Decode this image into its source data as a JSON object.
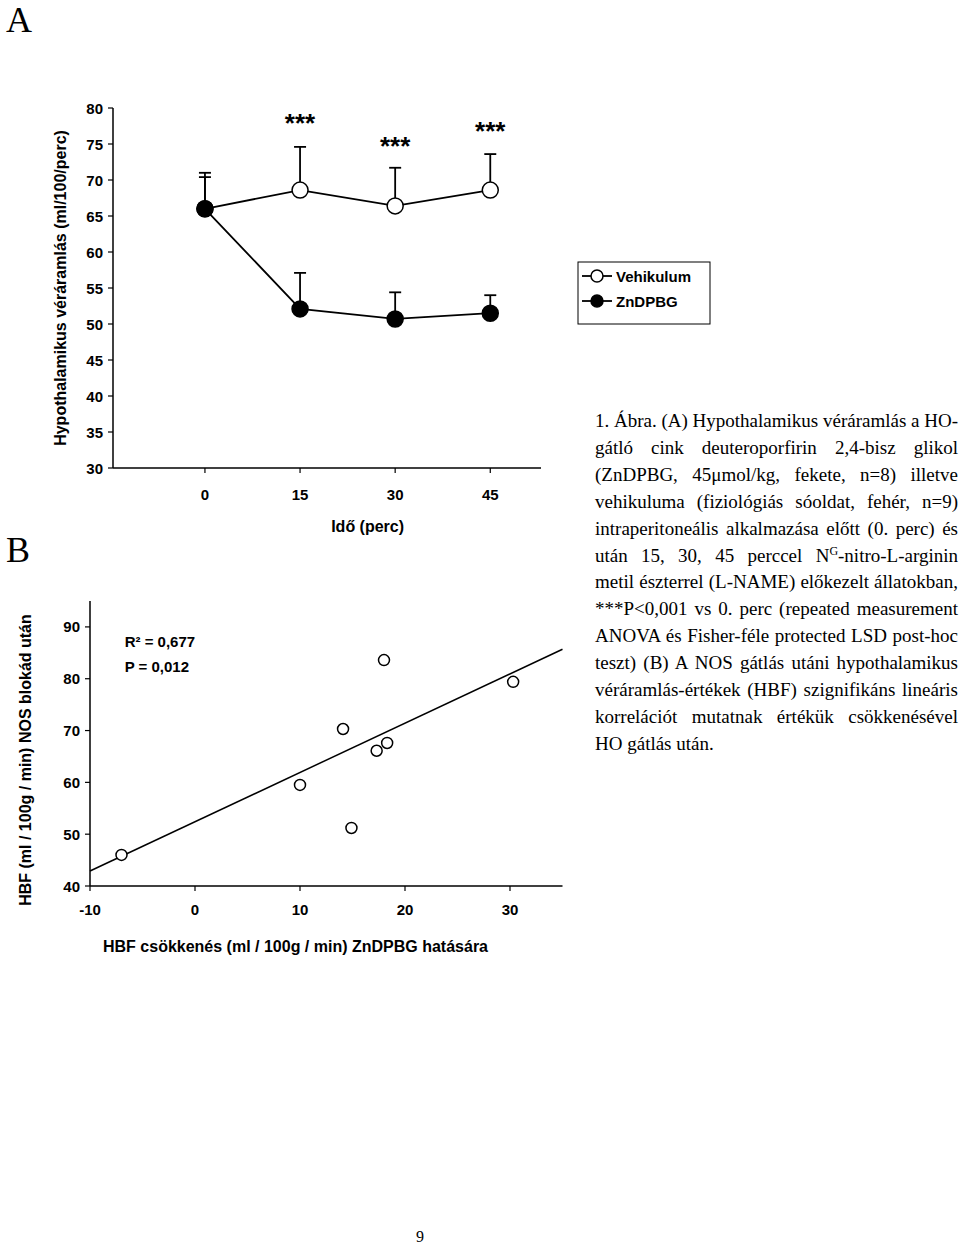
{
  "chart_data": [
    {
      "type": "line",
      "title": "A",
      "y_label": "Hypothalamikus véráramlás (ml/100/perc)",
      "x_label": "Idő (perc)",
      "x": [
        0,
        15,
        30,
        45
      ],
      "series": [
        {
          "name": "Vehikulum",
          "color": "#000000",
          "marker": "open-circle",
          "values": [
            66,
            68.6,
            66.4,
            68.6
          ],
          "errors": [
            5,
            6,
            5.3,
            5
          ]
        },
        {
          "name": "ZnDPBG",
          "color": "#000000",
          "marker": "filled-circle",
          "values": [
            66,
            52.1,
            50.7,
            51.5
          ],
          "errors": [
            4.4,
            5,
            3.7,
            2.5
          ]
        }
      ],
      "xlim": [
        -14.5,
        53
      ],
      "xticks": [
        0,
        15,
        30,
        45
      ],
      "ylim": [
        30,
        80
      ],
      "yticks": [
        30,
        35,
        40,
        45,
        50,
        55,
        60,
        65,
        70,
        75,
        80
      ],
      "annotations": [
        {
          "text": "***",
          "x": 15,
          "y": 78.3
        },
        {
          "text": "***",
          "x": 30,
          "y": 75.1
        },
        {
          "text": "***",
          "x": 45,
          "y": 77.2
        }
      ],
      "legend": "right",
      "grid": false
    },
    {
      "type": "scatter",
      "title": "B",
      "y_label": "HBF (ml / 100g / min) NOS blokád után",
      "x_label": "HBF csökkenés (ml / 100g / min) ZnDPBG hatására",
      "x": [
        -7,
        10,
        14.1,
        14.9,
        17.3,
        18.3,
        18,
        30.3
      ],
      "values": [
        46,
        59.5,
        70.3,
        51.2,
        66.1,
        67.6,
        83.6,
        79.4
      ],
      "color": "#000000",
      "marker": "open-circle",
      "trendline": {
        "slope": 0.951,
        "intercept": 52.4
      },
      "xlim": [
        -10,
        35
      ],
      "xticks": [
        -10,
        0,
        10,
        20,
        30
      ],
      "ylim": [
        40,
        95
      ],
      "yticks": [
        40,
        50,
        60,
        70,
        80,
        90
      ],
      "annotations": [
        {
          "text": "R² = 0,677",
          "x": -6.7,
          "y": 87.1
        },
        {
          "text": "P = 0,012",
          "x": -6.7,
          "y": 82.3
        }
      ],
      "grid": false
    }
  ],
  "caption": {
    "before": "1. Ábra. (A) Hypothalamikus véráramlás a HO-gátló cink deuteroporfirin 2,4-bisz glikol (ZnDPBG, 45μmol/kg, fekete, n=8) illetve vehikuluma (fiziológiás sóoldat, fehér, n=9) intraperitoneális alkalmazása előtt (0. perc) és után 15, 30, 45 perccel N",
    "superscript": "G",
    "after": "-nitro-L-arginin metil észterrel (L-NAME) előkezelt állatokban, ***P<0,001 vs 0. perc (repeated measurement ANOVA és Fisher-féle protected LSD post-hoc teszt) (B) A NOS gátlás utáni hypothalamikus véráramlás-értékek (HBF) szignifikáns lineáris korrelációt mutatnak értékük csökkenésével HO gátlás után."
  },
  "page_number": "9"
}
